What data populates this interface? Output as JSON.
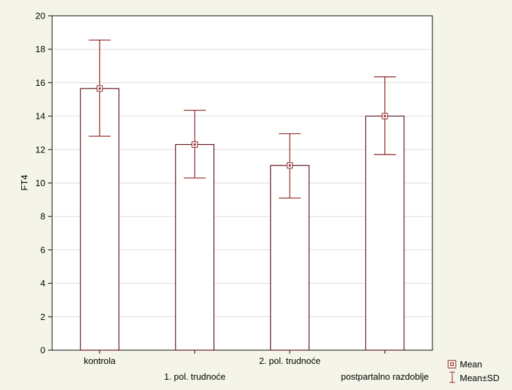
{
  "chart_data": {
    "type": "bar",
    "ylabel": "FT4",
    "xlabel": "",
    "ylim": [
      0,
      20
    ],
    "yticks": [
      0,
      2,
      4,
      6,
      8,
      10,
      12,
      14,
      16,
      18,
      20
    ],
    "grid": true,
    "legend_position": "bottom-right",
    "categories": [
      "kontrola",
      "1. pol. trudnoće",
      "2. pol. trudnoće",
      "postpartalno razdoblje"
    ],
    "series": [
      {
        "name": "Mean",
        "values": [
          15.65,
          12.3,
          11.05,
          14.0
        ],
        "sd_lower": [
          12.8,
          10.3,
          9.1,
          11.7
        ],
        "sd_upper": [
          18.55,
          14.35,
          12.95,
          16.35
        ]
      }
    ],
    "legend": [
      "Mean",
      "Mean±SD"
    ],
    "colors": {
      "background": "#f5f4e8",
      "plot_area": "#ffffff",
      "bar_outline": "#5a0f14",
      "error_bar": "#8b1a1a",
      "grid": "#dcdcdc",
      "axis": "#000000"
    }
  }
}
